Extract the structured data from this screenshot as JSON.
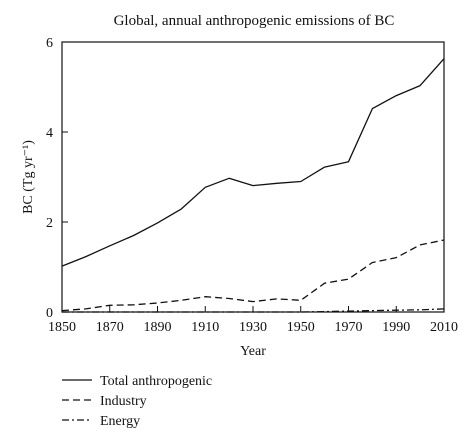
{
  "chart_data": {
    "type": "line",
    "title": "Global, annual anthropogenic emissions of BC",
    "xlabel": "Year",
    "ylabel": "BC (Tg yr⁻¹)",
    "xlim": [
      1850,
      2010
    ],
    "ylim": [
      0,
      6
    ],
    "xticks": [
      "1850",
      "1870",
      "1890",
      "1910",
      "1930",
      "1950",
      "1970",
      "1990",
      "2010"
    ],
    "yticks": [
      "0",
      "2",
      "4",
      "6"
    ],
    "grid": false,
    "legend_position": "bottom",
    "series": [
      {
        "name": "Total anthropogenic",
        "style": "solid",
        "x": [
          1850,
          1860,
          1870,
          1880,
          1890,
          1900,
          1910,
          1920,
          1930,
          1940,
          1950,
          1960,
          1970,
          1980,
          1990,
          2000,
          2010
        ],
        "y": [
          1.02,
          1.23,
          1.47,
          1.7,
          1.98,
          2.29,
          2.77,
          2.97,
          2.81,
          2.86,
          2.9,
          3.22,
          3.34,
          4.52,
          4.81,
          5.03,
          5.63
        ]
      },
      {
        "name": "Industry",
        "style": "dashed",
        "x": [
          1850,
          1860,
          1870,
          1880,
          1890,
          1900,
          1910,
          1920,
          1930,
          1940,
          1950,
          1960,
          1970,
          1980,
          1990,
          2000,
          2010
        ],
        "y": [
          0.03,
          0.07,
          0.15,
          0.16,
          0.2,
          0.26,
          0.34,
          0.3,
          0.23,
          0.29,
          0.26,
          0.64,
          0.73,
          1.1,
          1.21,
          1.49,
          1.6
        ]
      },
      {
        "name": "Energy",
        "style": "dashdot",
        "x": [
          1850,
          1860,
          1870,
          1880,
          1890,
          1900,
          1910,
          1920,
          1930,
          1940,
          1950,
          1960,
          1970,
          1980,
          1990,
          2000,
          2010
        ],
        "y": [
          0.0,
          0.0,
          0.0,
          0.0,
          0.0,
          0.0,
          0.0,
          0.0,
          0.0,
          0.0,
          0.0,
          0.01,
          0.02,
          0.03,
          0.04,
          0.05,
          0.07
        ]
      }
    ]
  }
}
